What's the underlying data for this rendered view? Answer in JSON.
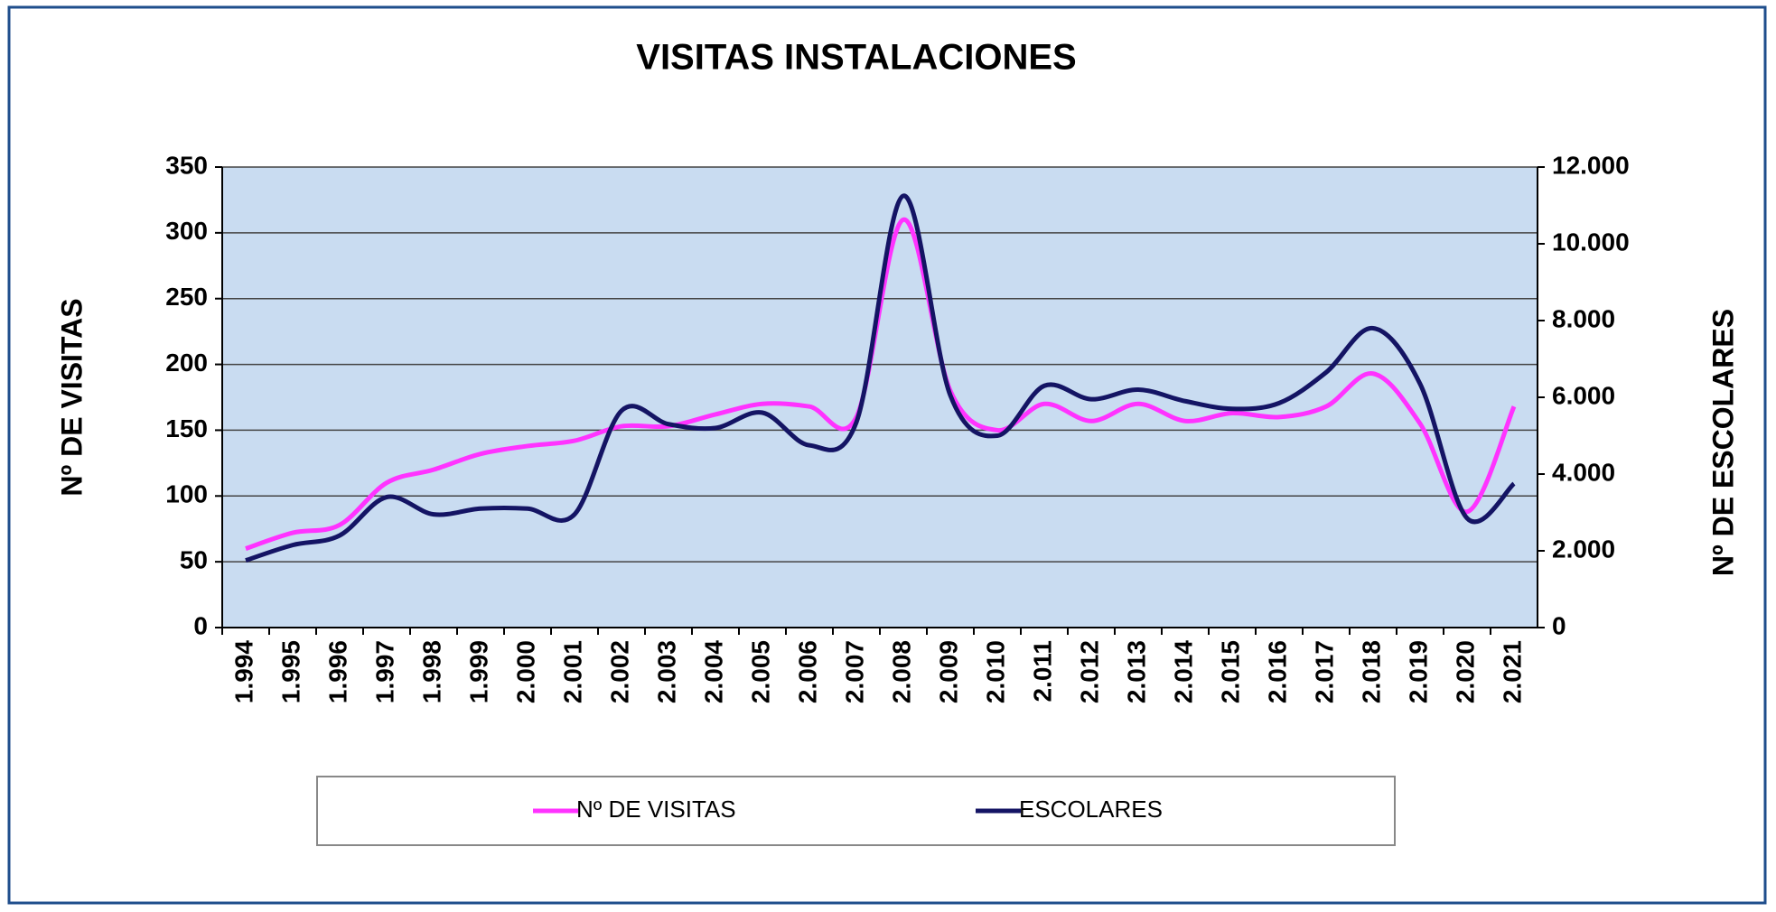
{
  "chart_data": {
    "type": "line",
    "title": "VISITAS INSTALACIONES",
    "y_label": "Nº DE VISITAS",
    "y2_label": "Nº DE ESCOLARES",
    "categories": [
      "1.994",
      "1.995",
      "1.996",
      "1.997",
      "1.998",
      "1.999",
      "2.000",
      "2.001",
      "2.002",
      "2.003",
      "2.004",
      "2.005",
      "2.006",
      "2.007",
      "2.008",
      "2.009",
      "2.010",
      "2.011",
      "2.012",
      "2.013",
      "2.014",
      "2.015",
      "2.016",
      "2.017",
      "2.018",
      "2.019",
      "2.020",
      "2.021"
    ],
    "series": [
      {
        "name": "Nº DE VISITAS",
        "color": "#ff33ff",
        "values": [
          60,
          72,
          78,
          110,
          120,
          132,
          138,
          142,
          153,
          153,
          162,
          170,
          168,
          160,
          310,
          180,
          150,
          170,
          157,
          170,
          157,
          163,
          160,
          168,
          193,
          155,
          88,
          168
        ]
      },
      {
        "name": "ESCOLARES",
        "color": "#141464",
        "axis": "y2",
        "values": [
          1750,
          2150,
          2400,
          3400,
          2950,
          3100,
          3100,
          2950,
          5650,
          5300,
          5200,
          5600,
          4750,
          5350,
          11250,
          6050,
          5000,
          6300,
          5950,
          6200,
          5900,
          5700,
          5850,
          6650,
          7800,
          6350,
          2850,
          3750
        ]
      }
    ],
    "ylim": [
      0,
      350
    ],
    "yticks": [
      0,
      50,
      100,
      150,
      200,
      250,
      300,
      350
    ],
    "y2lim": [
      0,
      12000
    ],
    "y2ticks": [
      0,
      {
        "value": 2000,
        "label": "2.000"
      },
      {
        "value": 4000,
        "label": "4.000"
      },
      {
        "value": 6000,
        "label": "6.000"
      },
      {
        "value": 8000,
        "label": "8.000"
      },
      {
        "value": 10000,
        "label": "10.000"
      },
      {
        "value": 12000,
        "label": "12.000"
      }
    ],
    "grid": true,
    "legend": "bottom"
  }
}
